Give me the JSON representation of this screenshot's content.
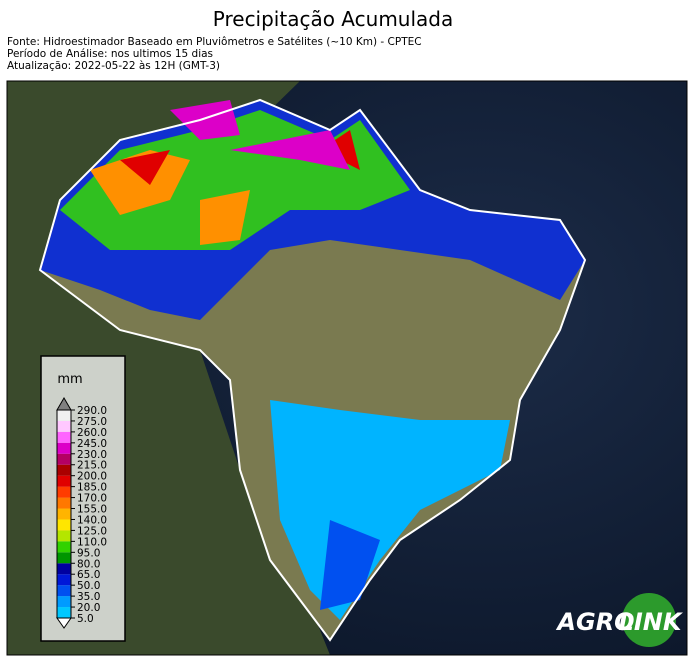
{
  "header": {
    "title": "Precipitação Acumulada",
    "lines": [
      "Fonte: Hidroestimador Baseado em Pluviômetros e Satélites (~10 Km) - CPTEC",
      "Período de Análise: nos ultimos 15 dias",
      "Atualização: 2022-05-22 às 12H (GMT-3)"
    ]
  },
  "colorbar": {
    "label": "mm",
    "ticks": [
      {
        "value": 5,
        "label": "5.0"
      },
      {
        "value": 20,
        "label": "20.0"
      },
      {
        "value": 35,
        "label": "35.0"
      },
      {
        "value": 50,
        "label": "50.0"
      },
      {
        "value": 65,
        "label": "65.0"
      },
      {
        "value": 80,
        "label": "80.0"
      },
      {
        "value": 95,
        "label": "95.0"
      },
      {
        "value": 110,
        "label": "110.0"
      },
      {
        "value": 125,
        "label": "125.0"
      },
      {
        "value": 140,
        "label": "140.0"
      },
      {
        "value": 155,
        "label": "155.0"
      },
      {
        "value": 170,
        "label": "170.0"
      },
      {
        "value": 185,
        "label": "185.0"
      },
      {
        "value": 200,
        "label": "200.0"
      },
      {
        "value": 215,
        "label": "215.0"
      },
      {
        "value": 230,
        "label": "230.0"
      },
      {
        "value": 245,
        "label": "245.0"
      },
      {
        "value": 260,
        "label": "260.0"
      },
      {
        "value": 275,
        "label": "275.0"
      },
      {
        "value": 290,
        "label": "290.0"
      }
    ],
    "colors": [
      "#00c8ff",
      "#009bff",
      "#0050f0",
      "#0018d8",
      "#0000a0",
      "#009600",
      "#32d200",
      "#b4e600",
      "#ffe600",
      "#ffb400",
      "#ff7800",
      "#ff3c00",
      "#e00000",
      "#aa0000",
      "#b40064",
      "#dc00c8",
      "#ff64ff",
      "#ffc8ff",
      "#f0f0f0"
    ],
    "under_color": "#ffffff",
    "over_color": "#808080"
  },
  "logo": {
    "left": "AGRO",
    "right": "LINK"
  }
}
